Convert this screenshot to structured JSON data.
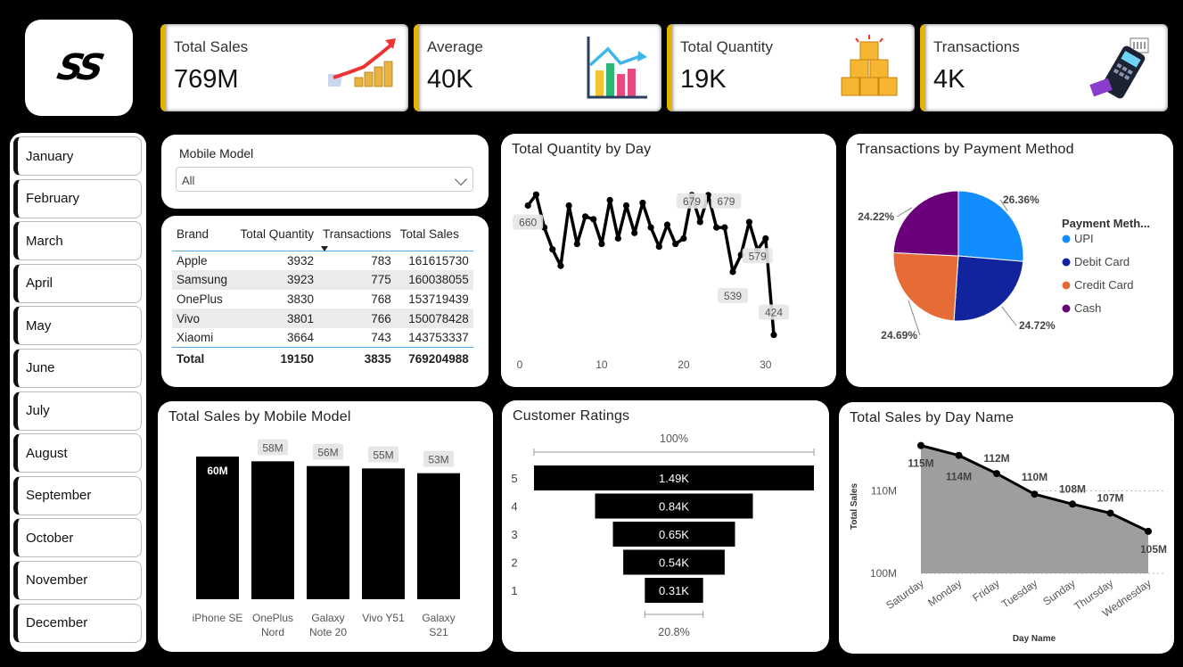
{
  "logo": {
    "text": "SS"
  },
  "kpis": [
    {
      "label": "Total Sales",
      "value": "769M",
      "icon": "growth-chart-coins-icon"
    },
    {
      "label": "Average",
      "value": "40K",
      "icon": "bar-chart-arrow-icon"
    },
    {
      "label": "Total Quantity",
      "value": "19K",
      "icon": "stacked-boxes-icon"
    },
    {
      "label": "Transactions",
      "value": "4K",
      "icon": "card-terminal-icon"
    }
  ],
  "months": [
    "January",
    "February",
    "March",
    "April",
    "May",
    "June",
    "July",
    "August",
    "September",
    "October",
    "November",
    "December"
  ],
  "slicer": {
    "title": "Mobile Model",
    "value": "All"
  },
  "brand_table": {
    "headers": [
      "Brand",
      "Total Quantity",
      "Transactions",
      "Total Sales"
    ],
    "rows": [
      [
        "Apple",
        "3932",
        "783",
        "161615730"
      ],
      [
        "Samsung",
        "3923",
        "775",
        "160038055"
      ],
      [
        "OnePlus",
        "3830",
        "768",
        "153719439"
      ],
      [
        "Vivo",
        "3801",
        "766",
        "150078428"
      ],
      [
        "Xiaomi",
        "3664",
        "743",
        "143753337"
      ]
    ],
    "total": [
      "Total",
      "19150",
      "3835",
      "769204988"
    ]
  },
  "colors": {
    "kpi_accent": "#e0b400",
    "upi": "#118dff",
    "debit": "#12239e",
    "credit": "#e66c37",
    "cash": "#6b007b",
    "table_line": "#5aa7dd",
    "area_fill": "#9e9e9e"
  },
  "chart_data": [
    {
      "type": "line",
      "title": "Total Quantity by Day",
      "x": [
        1,
        2,
        3,
        4,
        5,
        6,
        7,
        8,
        9,
        10,
        11,
        12,
        13,
        14,
        15,
        16,
        17,
        18,
        19,
        20,
        21,
        22,
        23,
        24,
        25,
        26,
        27,
        28,
        29,
        30,
        31
      ],
      "values": [
        660,
        680,
        620,
        580,
        550,
        660,
        590,
        640,
        635,
        590,
        670,
        600,
        660,
        610,
        665,
        620,
        585,
        625,
        590,
        600,
        679,
        630,
        679,
        620,
        620,
        539,
        570,
        630,
        579,
        600,
        424
      ],
      "xlim": [
        0,
        31
      ],
      "xticks": [
        0,
        10,
        20,
        30
      ],
      "data_labels": [
        {
          "x": 1,
          "label": "660"
        },
        {
          "x": 21,
          "label": "679"
        },
        {
          "x": 23,
          "label": "679"
        },
        {
          "x": 26,
          "label": "539"
        },
        {
          "x": 29,
          "label": "579"
        },
        {
          "x": 31,
          "label": "424"
        }
      ]
    },
    {
      "type": "pie",
      "title": "Transactions by Payment Method",
      "legend_title": "Payment Meth...",
      "legend_position": "right",
      "slices": [
        {
          "name": "UPI",
          "value": 26.36,
          "label": "26.36%",
          "color": "#118dff"
        },
        {
          "name": "Debit Card",
          "value": 24.72,
          "label": "24.72%",
          "color": "#12239e"
        },
        {
          "name": "Credit Card",
          "value": 24.69,
          "label": "24.69%",
          "color": "#e66c37"
        },
        {
          "name": "Cash",
          "value": 24.22,
          "label": "24.22%",
          "color": "#6b007b"
        }
      ]
    },
    {
      "type": "bar",
      "title": "Total Sales by Mobile Model",
      "categories": [
        "iPhone SE",
        "OnePlus Nord",
        "Galaxy Note 20",
        "Vivo Y51",
        "Galaxy S21"
      ],
      "category_lines": [
        [
          "iPhone SE"
        ],
        [
          "OnePlus",
          "Nord"
        ],
        [
          "Galaxy",
          "Note 20"
        ],
        [
          "Vivo Y51"
        ],
        [
          "Galaxy",
          "S21"
        ]
      ],
      "values": [
        60,
        58,
        56,
        55,
        53
      ],
      "labels": [
        "60M",
        "58M",
        "56M",
        "55M",
        "53M"
      ],
      "unit": "M",
      "ylim": [
        0,
        60
      ]
    },
    {
      "type": "bar",
      "subtype": "funnel",
      "title": "Customer Ratings",
      "categories": [
        "5",
        "4",
        "3",
        "2",
        "1"
      ],
      "values": [
        1.49,
        0.84,
        0.65,
        0.54,
        0.31
      ],
      "labels": [
        "1.49K",
        "0.84K",
        "0.65K",
        "0.54K",
        "0.31K"
      ],
      "top_percent": "100%",
      "bottom_percent": "20.8%"
    },
    {
      "type": "area",
      "title": "Total Sales by Day Name",
      "categories": [
        "Saturday",
        "Monday",
        "Friday",
        "Tuesday",
        "Sunday",
        "Thursday",
        "Wednesday"
      ],
      "values": [
        115.5,
        114.3,
        112.1,
        109.6,
        108.4,
        107.3,
        105.1
      ],
      "labels": [
        "115M",
        "114M",
        "112M",
        "110M",
        "108M",
        "107M",
        "105M"
      ],
      "xlabel": "Day Name",
      "ylabel": "Total Sales",
      "yticks": [
        {
          "value": 100,
          "label": "100M"
        },
        {
          "value": 110,
          "label": "110M"
        }
      ],
      "ylim": [
        100,
        116
      ],
      "grid": true
    }
  ]
}
